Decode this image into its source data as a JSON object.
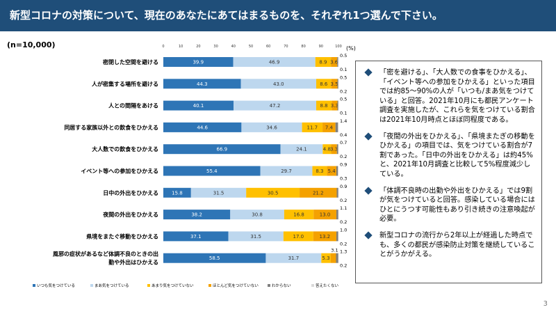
{
  "header": {
    "title": "新型コロナの対策について、現在のあなたにあてはまるものを、それぞれ1つ選んで下さい。"
  },
  "sample_size": "(n=10,000)",
  "page_number": "3",
  "chart_data": {
    "type": "bar",
    "stacked": "horizontal-100%",
    "unit_label": "(%)",
    "x_ticks": [
      "0",
      "10",
      "20",
      "30",
      "40",
      "50",
      "60",
      "70",
      "80",
      "90",
      "100"
    ],
    "xlim": [
      0,
      100
    ],
    "categories": [
      "密閉した空間を避ける",
      "人が密集する場所を避ける",
      "人との間隔をあける",
      "同居する家族以外との飲食をひかえる",
      "大人数での飲食をひかえる",
      "イベント等への参加をひかえる",
      "日中の外出をひかえる",
      "夜間の外出をひかえる",
      "県境をまたぐ移動をひかえる",
      "風邪の症状があるなど体調不良のときの出勤や外出はひかえる"
    ],
    "series": [
      {
        "name": "いつも気をつけている",
        "color": "#2e75b6",
        "text_color": "#ffffff",
        "values": [
          39.9,
          44.3,
          40.1,
          44.6,
          66.9,
          55.4,
          15.8,
          38.2,
          37.1,
          58.5
        ]
      },
      {
        "name": "まあ気をつけている",
        "color": "#bdd7ee",
        "text_color": "#333333",
        "values": [
          46.9,
          43.0,
          47.2,
          34.6,
          24.1,
          29.7,
          31.5,
          30.8,
          31.5,
          31.7
        ]
      },
      {
        "name": "あまり気をつけていない",
        "color": "#ffc000",
        "text_color": "#333333",
        "values": [
          8.9,
          8.6,
          8.8,
          11.7,
          4.8,
          8.3,
          30.5,
          16.8,
          17.0,
          5.3
        ]
      },
      {
        "name": "ほとんど気をつけていない",
        "color": "#f4a100",
        "text_color": "#333333",
        "values": [
          3.6,
          3.5,
          3.3,
          7.4,
          3.3,
          5.4,
          21.2,
          13.0,
          13.2,
          3.1
        ]
      },
      {
        "name": "わからない",
        "color": "#7f7f7f",
        "text_color": "#333333",
        "values": [
          0.5,
          0.5,
          0.5,
          1.4,
          0.7,
          0.9,
          0.9,
          1.1,
          1.0,
          1.3
        ]
      },
      {
        "name": "答えたくない",
        "color": "#d9d9d9",
        "text_color": "#333333",
        "values": [
          0.1,
          0.2,
          0.1,
          0.4,
          0.2,
          0.3,
          0.2,
          0.2,
          0.2,
          0.2
        ]
      }
    ],
    "legend_position": "bottom"
  },
  "notes": [
    "「密を避ける」、「大人数での食事をひかえる」、「イベント等への参加をひかえる」といった項目では約85～90%の人が「いつも/まあ気をつけている」と回答。2021年10月にも都民アンケート調査を実施したが、これらを気をつけている割合は2021年10月時点とほぼ同程度である。",
    "「夜間の外出をひかえる」、「県境またぎの移動をひかえる」の項目では、気をつけている割合が7割であった。「日中の外出をひかえる」は約45%と、2021年10月調査と比較して5%程度減少している。",
    "「体調不良時の出勤や外出をひかえる」では9割が気をつけていると回答。感染している場合にはひとにうつす可能性もあり引き続きの注意喚起が必要。",
    "新型コロナの流行から2年以上が経過した時点でも、多くの都民が感染防止対策を継続していることがうかがえる。"
  ]
}
